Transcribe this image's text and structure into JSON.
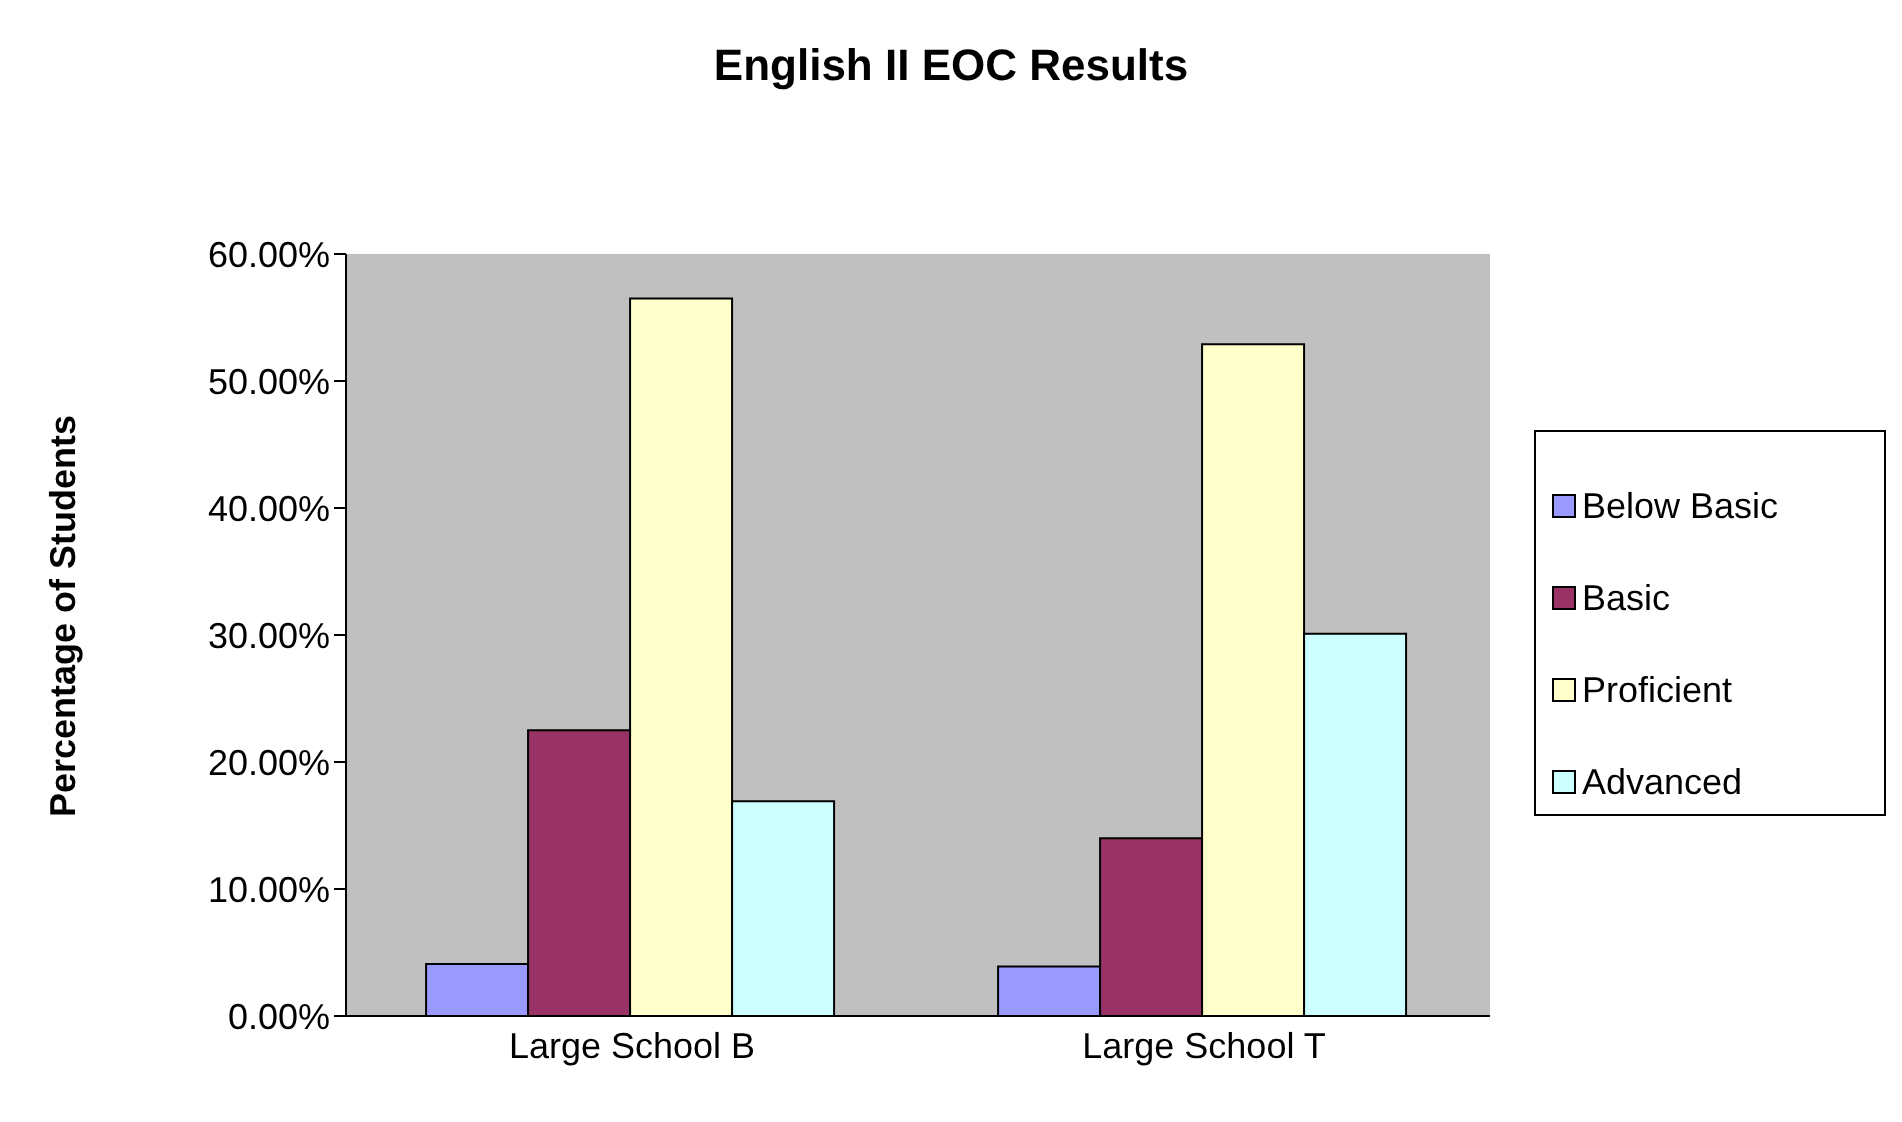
{
  "chart_data": {
    "type": "bar",
    "title": "English II EOC Results",
    "ylabel": "Percentage of Students",
    "categories": [
      "Large School B",
      "Large School T"
    ],
    "series": [
      {
        "name": "Below Basic",
        "color": "#9999ff",
        "values": [
          4.1,
          3.9
        ]
      },
      {
        "name": "Basic",
        "color": "#993366",
        "values": [
          22.5,
          14.0
        ]
      },
      {
        "name": "Proficient",
        "color": "#ffffcc",
        "values": [
          56.5,
          52.9
        ]
      },
      {
        "name": "Advanced",
        "color": "#ccffff",
        "values": [
          16.9,
          30.1
        ]
      }
    ],
    "ylim": [
      0,
      60
    ],
    "yticks": [
      {
        "value": 0,
        "label": "0.00%"
      },
      {
        "value": 10,
        "label": "10.00%"
      },
      {
        "value": 20,
        "label": "20.00%"
      },
      {
        "value": 30,
        "label": "30.00%"
      },
      {
        "value": 40,
        "label": "40.00%"
      },
      {
        "value": 50,
        "label": "50.00%"
      },
      {
        "value": 60,
        "label": "60.00%"
      }
    ],
    "grid": false,
    "legend": "right"
  }
}
